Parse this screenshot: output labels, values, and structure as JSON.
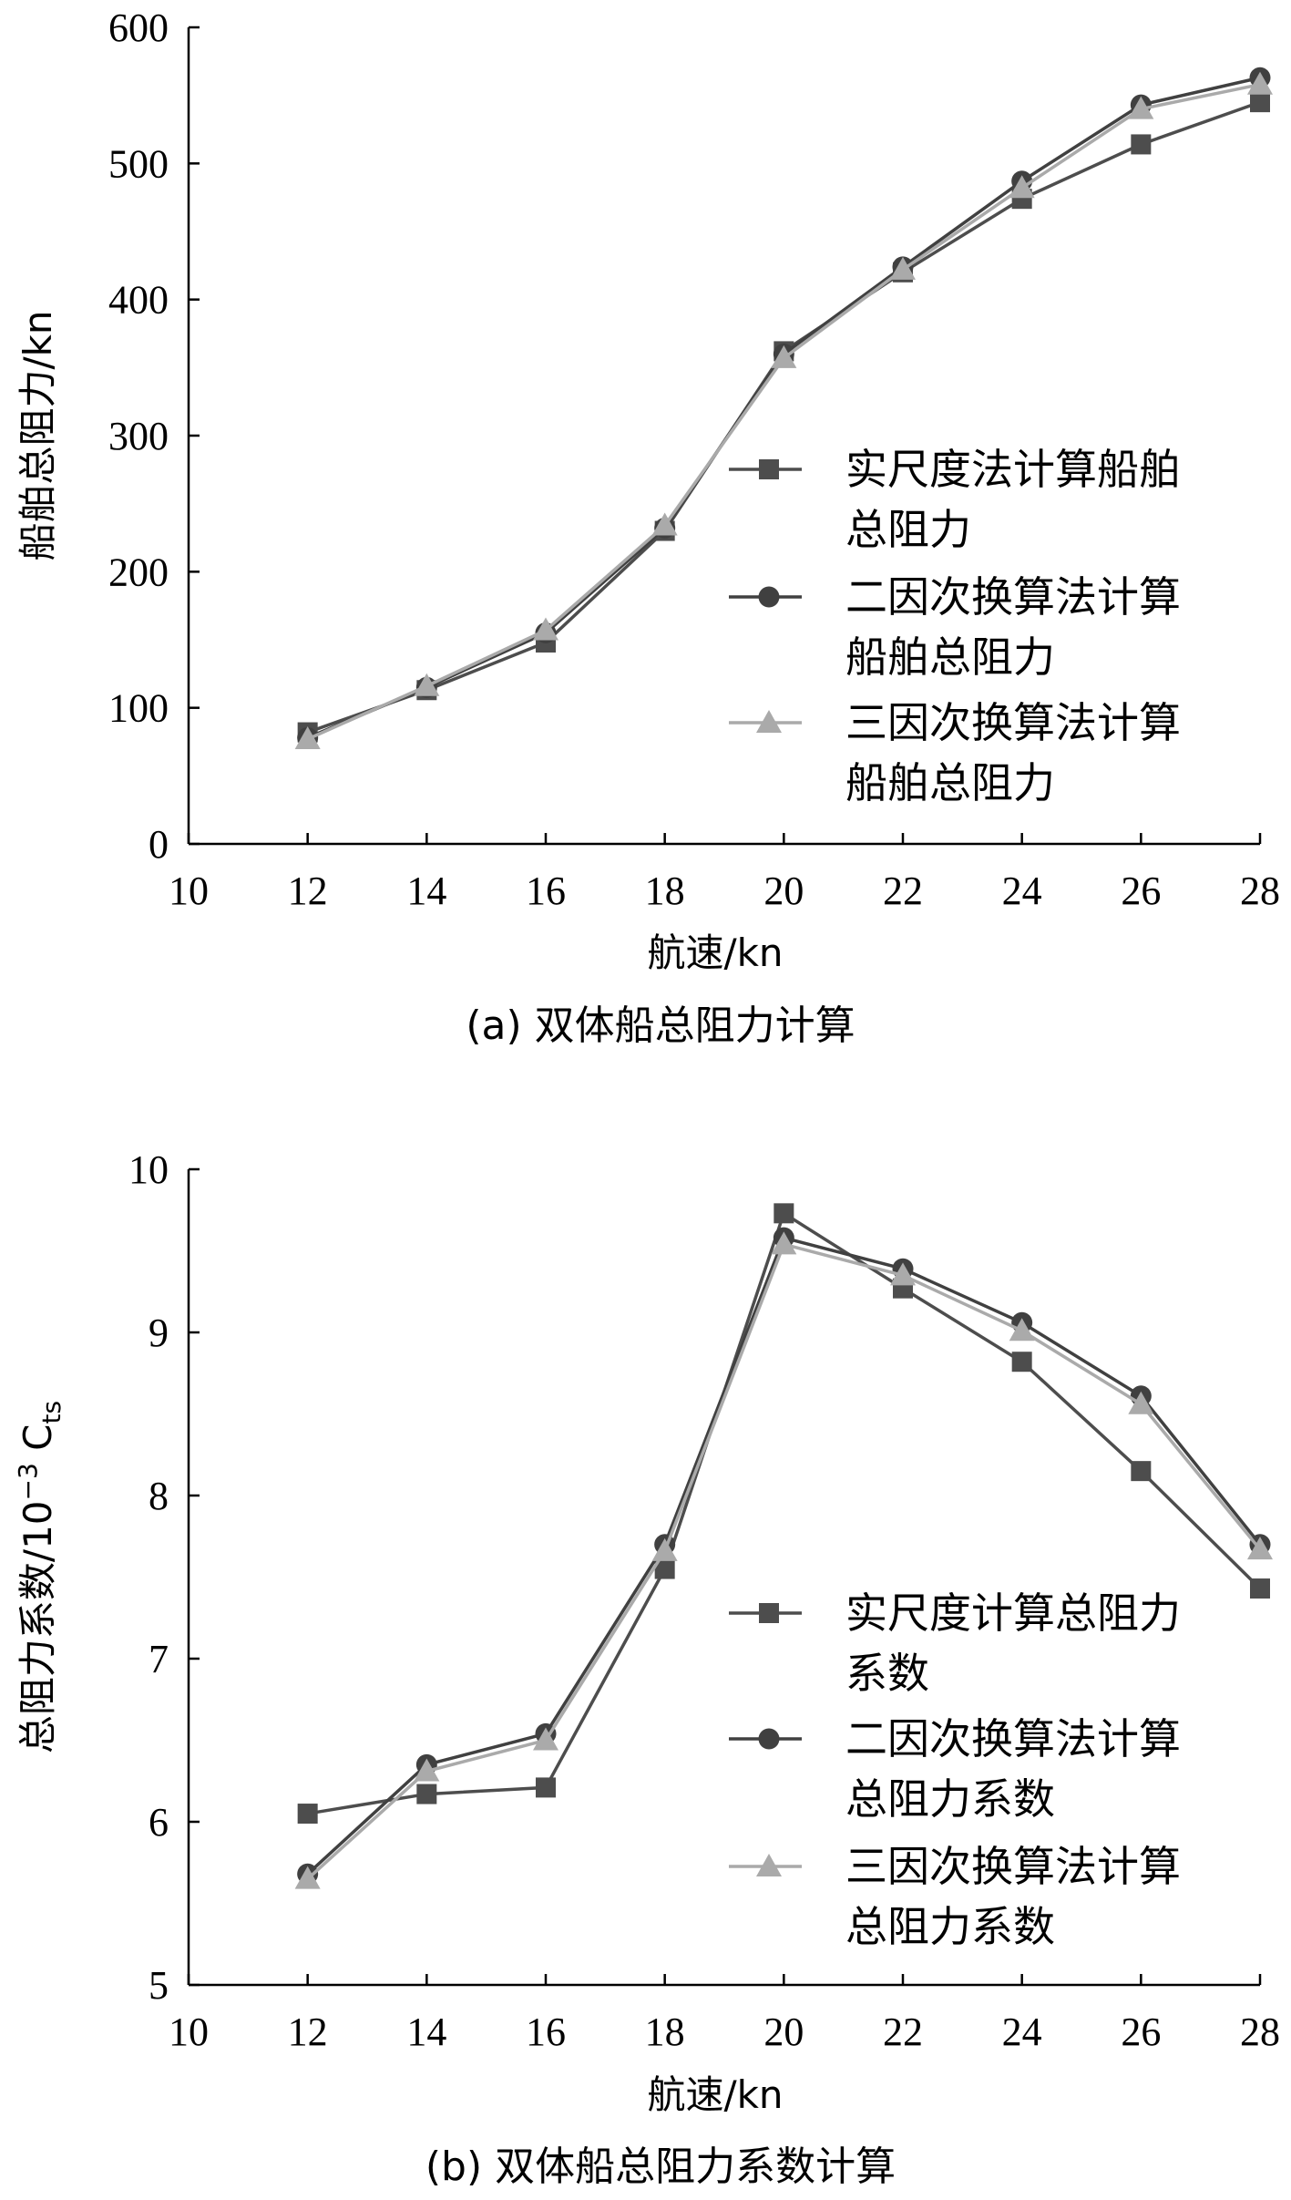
{
  "chart_data": [
    {
      "type": "line",
      "caption": "(a) 双体船总阻力计算",
      "xlabel": "航速/kn",
      "ylabel": "船舶总阻力/kn",
      "xlim": [
        10,
        28
      ],
      "ylim": [
        0,
        600
      ],
      "xticks": [
        "10",
        "12",
        "14",
        "16",
        "18",
        "20",
        "22",
        "24",
        "26",
        "28"
      ],
      "yticks": [
        "0",
        "100",
        "200",
        "300",
        "400",
        "500",
        "600"
      ],
      "grid": false,
      "legend_position": "right-middle",
      "x": [
        12,
        14,
        16,
        18,
        20,
        22,
        24,
        26,
        28
      ],
      "series": [
        {
          "name": [
            "实尺度法计算船舶",
            "总阻力"
          ],
          "marker": "square",
          "color": "#4d4d4d",
          "values": [
            82,
            113,
            148,
            230,
            362,
            420,
            474,
            514,
            545
          ]
        },
        {
          "name": [
            "二因次换算法计算",
            "船舶总阻力"
          ],
          "marker": "circle",
          "color": "#404040",
          "values": [
            78,
            115,
            155,
            232,
            360,
            424,
            487,
            543,
            563
          ]
        },
        {
          "name": [
            "三因次换算法计算",
            "船舶总阻力"
          ],
          "marker": "triangle",
          "color": "#aaaaaa",
          "values": [
            77,
            116,
            157,
            234,
            357,
            422,
            482,
            540,
            558
          ]
        }
      ]
    },
    {
      "type": "line",
      "caption": "(b) 双体船总阻力系数计算",
      "xlabel": "航速/kn",
      "ylabel": "总阻力系数/10",
      "ylabel_sup": "−3",
      "ylabel_tail": " C",
      "ylabel_sub": "ts",
      "xlim": [
        10,
        28
      ],
      "ylim": [
        5,
        10
      ],
      "xticks": [
        "10",
        "12",
        "14",
        "16",
        "18",
        "20",
        "22",
        "24",
        "26",
        "28"
      ],
      "yticks": [
        "5",
        "6",
        "7",
        "8",
        "9",
        "10"
      ],
      "grid": false,
      "legend_position": "right-lower",
      "x": [
        12,
        14,
        16,
        18,
        20,
        22,
        24,
        26,
        28
      ],
      "series": [
        {
          "name": [
            "实尺度计算总阻力",
            "系数"
          ],
          "marker": "square",
          "color": "#4d4d4d",
          "values": [
            6.05,
            6.17,
            6.21,
            7.55,
            9.73,
            9.27,
            8.82,
            8.15,
            7.43
          ]
        },
        {
          "name": [
            "二因次换算法计算",
            "总阻力系数"
          ],
          "marker": "circle",
          "color": "#404040",
          "values": [
            5.68,
            6.35,
            6.54,
            7.7,
            9.58,
            9.39,
            9.06,
            8.61,
            7.7
          ]
        },
        {
          "name": [
            "三因次换算法计算",
            "总阻力系数"
          ],
          "marker": "triangle",
          "color": "#aaaaaa",
          "values": [
            5.65,
            6.31,
            6.5,
            7.66,
            9.54,
            9.35,
            9.01,
            8.56,
            7.67
          ]
        }
      ]
    }
  ]
}
